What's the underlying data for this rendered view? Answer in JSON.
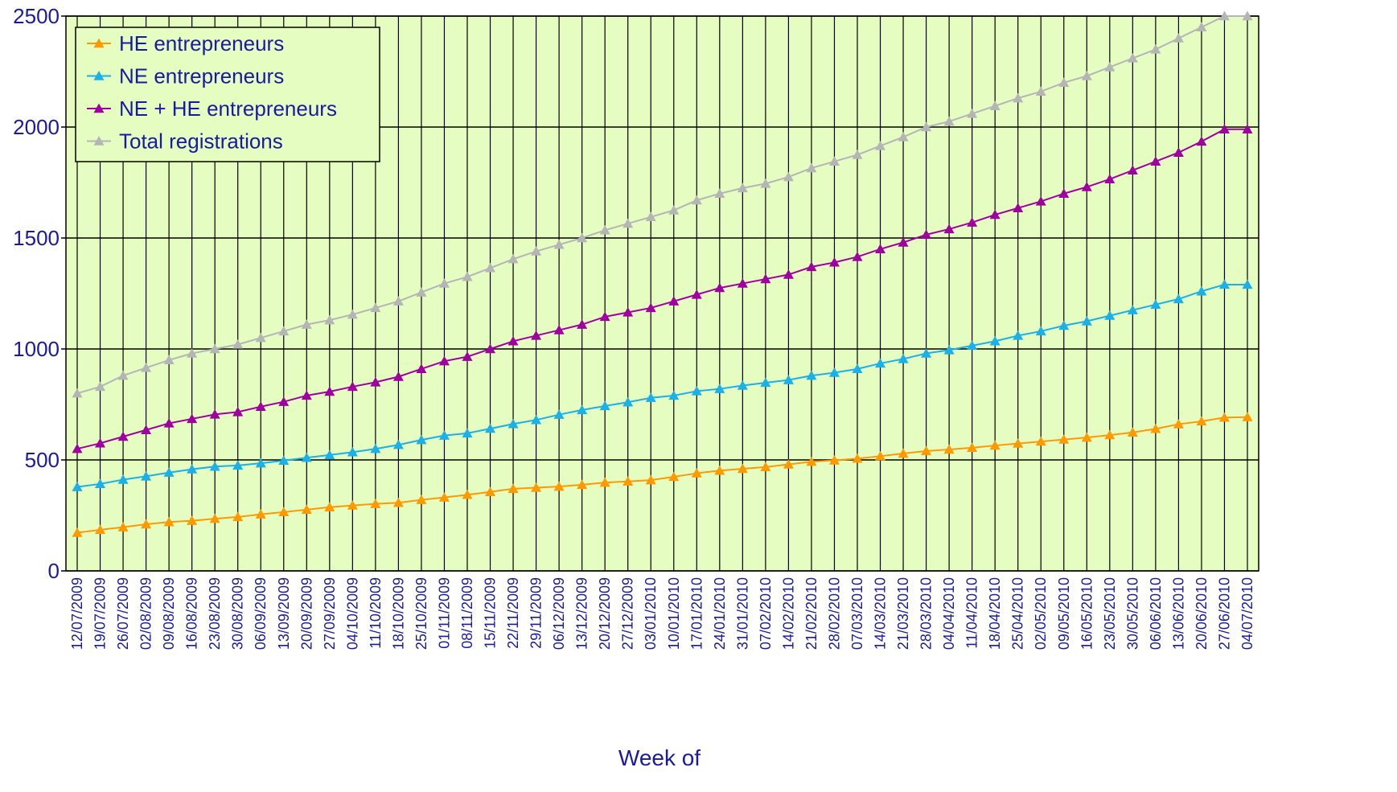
{
  "chart_data": {
    "type": "line",
    "title": "",
    "xlabel": "Week of",
    "ylabel": "",
    "ylim": [
      0,
      2500
    ],
    "yticks": [
      0,
      500,
      1000,
      1500,
      2000,
      2500
    ],
    "grid": true,
    "legend_position": "top-left",
    "colors": {
      "plot_background": "#e6fdc2",
      "grid": "#000000",
      "text": "#1a1aa0"
    },
    "categories": [
      "12/07/2009",
      "19/07/2009",
      "26/07/2009",
      "02/08/2009",
      "09/08/2009",
      "16/08/2009",
      "23/08/2009",
      "30/08/2009",
      "06/09/2009",
      "13/09/2009",
      "20/09/2009",
      "27/09/2009",
      "04/10/2009",
      "11/10/2009",
      "18/10/2009",
      "25/10/2009",
      "01/11/2009",
      "08/11/2009",
      "15/11/2009",
      "22/11/2009",
      "29/11/2009",
      "06/12/2009",
      "13/12/2009",
      "20/12/2009",
      "27/12/2009",
      "03/01/2010",
      "10/01/2010",
      "17/01/2010",
      "24/01/2010",
      "31/01/2010",
      "07/02/2010",
      "14/02/2010",
      "21/02/2010",
      "28/02/2010",
      "07/03/2010",
      "14/03/2010",
      "21/03/2010",
      "28/03/2010",
      "04/04/2010",
      "11/04/2010",
      "18/04/2010",
      "25/04/2010",
      "02/05/2010",
      "09/05/2010",
      "16/05/2010",
      "23/05/2010",
      "30/05/2010",
      "06/06/2010",
      "13/06/2010",
      "20/06/2010",
      "27/06/2010",
      "04/07/2010"
    ],
    "series": [
      {
        "name": "HE entrepreneurs",
        "color": "#ff9900",
        "values": [
          172,
          185,
          197,
          210,
          220,
          226,
          235,
          243,
          255,
          265,
          276,
          287,
          295,
          302,
          307,
          320,
          331,
          343,
          356,
          370,
          375,
          380,
          388,
          398,
          403,
          409,
          424,
          440,
          452,
          460,
          468,
          480,
          492,
          498,
          506,
          517,
          529,
          540,
          547,
          555,
          565,
          574,
          583,
          592,
          601,
          612,
          624,
          640,
          661,
          674,
          691,
          693
        ]
      },
      {
        "name": "NE entrepreneurs",
        "color": "#1ab0e8",
        "values": [
          378,
          392,
          411,
          426,
          443,
          458,
          470,
          475,
          485,
          497,
          510,
          522,
          535,
          550,
          568,
          590,
          610,
          620,
          641,
          662,
          680,
          704,
          725,
          743,
          760,
          780,
          790,
          810,
          820,
          835,
          848,
          860,
          880,
          893,
          910,
          935,
          955,
          980,
          995,
          1015,
          1035,
          1060,
          1080,
          1105,
          1125,
          1150,
          1175,
          1200,
          1225,
          1260,
          1290,
          1290
        ]
      },
      {
        "name": "NE + HE entrepreneurs",
        "color": "#a000a0",
        "values": [
          550,
          575,
          605,
          635,
          665,
          685,
          705,
          716,
          740,
          762,
          790,
          808,
          830,
          850,
          875,
          910,
          945,
          965,
          1000,
          1035,
          1060,
          1085,
          1110,
          1145,
          1165,
          1185,
          1215,
          1245,
          1275,
          1295,
          1315,
          1335,
          1370,
          1390,
          1415,
          1450,
          1480,
          1515,
          1540,
          1570,
          1605,
          1635,
          1665,
          1700,
          1730,
          1765,
          1805,
          1845,
          1885,
          1935,
          1990,
          1990
        ]
      },
      {
        "name": "Total registrations",
        "color": "#b5b5b5",
        "values": [
          800,
          830,
          880,
          915,
          950,
          980,
          1000,
          1020,
          1050,
          1080,
          1110,
          1130,
          1155,
          1185,
          1215,
          1255,
          1295,
          1325,
          1365,
          1405,
          1440,
          1470,
          1500,
          1535,
          1565,
          1595,
          1625,
          1670,
          1700,
          1725,
          1745,
          1775,
          1815,
          1845,
          1875,
          1915,
          1955,
          2000,
          2025,
          2060,
          2095,
          2130,
          2160,
          2200,
          2230,
          2270,
          2310,
          2350,
          2400,
          2450,
          2500,
          2500
        ]
      }
    ]
  }
}
